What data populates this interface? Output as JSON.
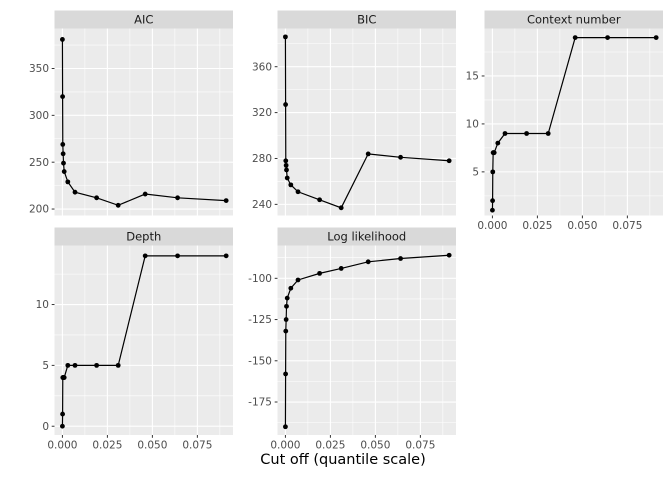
{
  "xlabel": "Cut off (quantile scale)",
  "figure_colors": {
    "background": "#ffffff",
    "panel_background": "#ebebeb",
    "strip_background": "#d9d9d9",
    "grid": "#ffffff",
    "line": "#000000",
    "point": "#000000",
    "axis_text": "#4d4d4d",
    "strip_text": "#1a1a1a"
  },
  "chart_data": {
    "type": "line",
    "facet_layout": "wrap_3cols_free_y",
    "xlabel": "Cut off (quantile scale)",
    "x": [
      0,
      0.0001,
      0.0002,
      0.0004,
      0.0006,
      0.001,
      0.003,
      0.007,
      0.019,
      0.031,
      0.046,
      0.064,
      0.091
    ],
    "xlim": [
      -0.0044,
      0.0948
    ],
    "x_ticks": [
      0,
      0.025,
      0.05,
      0.075
    ],
    "x_tick_labels": [
      "0.000",
      "0.025",
      "0.050",
      "0.075"
    ],
    "x_minor_ticks": [
      0.0125,
      0.0375,
      0.0625,
      0.0875
    ],
    "grid": true,
    "legend": "none",
    "panels": [
      {
        "title": "AIC",
        "values": [
          381,
          320,
          269,
          259,
          249,
          240,
          229,
          218,
          212,
          204,
          216,
          212,
          209
        ],
        "ylim": [
          193.1,
          392.7
        ],
        "y_ticks": [
          200,
          250,
          300,
          350
        ],
        "y_tick_labels": [
          "200",
          "250",
          "300",
          "350"
        ]
      },
      {
        "title": "BIC",
        "values": [
          386,
          327,
          278,
          274,
          270,
          263,
          257,
          251,
          244,
          237,
          284,
          281,
          278
        ],
        "ylim": [
          230.3,
          393.3
        ],
        "y_ticks": [
          240,
          280,
          320,
          360
        ],
        "y_tick_labels": [
          "240",
          "280",
          "320",
          "360"
        ]
      },
      {
        "title": "Context number",
        "values": [
          1,
          2,
          5,
          7,
          7,
          7,
          8,
          9,
          9,
          9,
          19,
          19,
          19
        ],
        "ylim": [
          0.45,
          19.95
        ],
        "y_ticks": [
          5,
          10,
          15
        ],
        "y_tick_labels": [
          "5",
          "10",
          "15"
        ]
      },
      {
        "title": "Depth",
        "values": [
          0,
          1,
          4,
          4,
          4,
          4,
          5,
          5,
          5,
          5,
          14,
          14,
          14
        ],
        "ylim": [
          -0.72,
          14.85
        ],
        "y_ticks": [
          0,
          5,
          10
        ],
        "y_tick_labels": [
          "0",
          "5",
          "10"
        ]
      },
      {
        "title": "Log likelihood",
        "values": [
          -190,
          -158,
          -132,
          -125,
          -117,
          -112,
          -106,
          -101,
          -97,
          -94,
          -90,
          -88,
          -86
        ],
        "ylim": [
          -195,
          -80.1
        ],
        "y_ticks": [
          -175,
          -150,
          -125,
          -100
        ],
        "y_tick_labels": [
          "-175",
          "-150",
          "-125",
          "-100"
        ]
      }
    ]
  }
}
